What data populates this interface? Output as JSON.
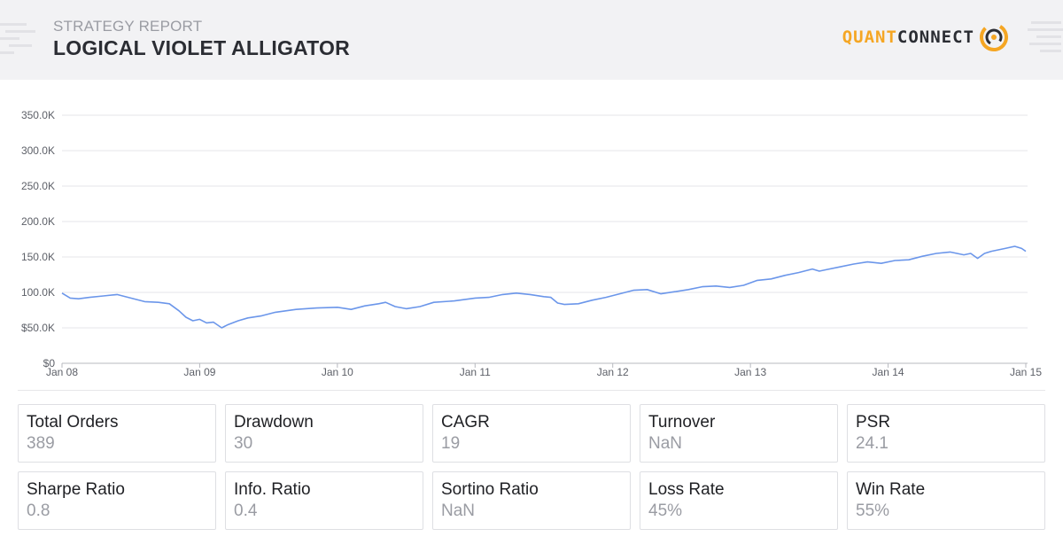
{
  "header": {
    "subtitle": "STRATEGY REPORT",
    "title": "LOGICAL VIOLET ALLIGATOR",
    "logo_part1": "QUANT",
    "logo_part2": "CONNECT"
  },
  "colors": {
    "accent": "#f5a623",
    "line": "#6b96ea",
    "grid": "#e6e6e9",
    "text": "#1f2024",
    "muted": "#9a9ca3"
  },
  "chart_data": {
    "type": "line",
    "title": "",
    "xlabel": "",
    "ylabel": "",
    "x_ticks": [
      "Jan 08",
      "Jan 09",
      "Jan 10",
      "Jan 11",
      "Jan 12",
      "Jan 13",
      "Jan 14",
      "Jan 15"
    ],
    "y_ticks": [
      "$0",
      "$50.0K",
      "100.0K",
      "150.0K",
      "200.0K",
      "250.0K",
      "300.0K",
      "350.0K"
    ],
    "ylim": [
      0,
      350000
    ],
    "xlim": [
      2008.0,
      2015.0
    ],
    "grid": true,
    "legend": "none",
    "series": [
      {
        "x": [
          2008.0,
          2008.06,
          2008.12,
          2008.2,
          2008.3,
          2008.4,
          2008.5,
          2008.6,
          2008.7,
          2008.78,
          2008.85,
          2008.9,
          2008.95,
          2009.0,
          2009.05,
          2009.1,
          2009.16,
          2009.2,
          2009.28,
          2009.35,
          2009.45,
          2009.55,
          2009.7,
          2009.85,
          2010.0,
          2010.1,
          2010.2,
          2010.3,
          2010.35,
          2010.42,
          2010.5,
          2010.6,
          2010.7,
          2010.85,
          2011.0,
          2011.1,
          2011.2,
          2011.3,
          2011.4,
          2011.5,
          2011.55,
          2011.6,
          2011.65,
          2011.75,
          2011.85,
          2011.95,
          2012.05,
          2012.15,
          2012.25,
          2012.35,
          2012.45,
          2012.55,
          2012.65,
          2012.75,
          2012.85,
          2012.95,
          2013.05,
          2013.15,
          2013.25,
          2013.35,
          2013.45,
          2013.5,
          2013.55,
          2013.65,
          2013.75,
          2013.85,
          2013.95,
          2014.05,
          2014.15,
          2014.25,
          2014.35,
          2014.45,
          2014.55,
          2014.6,
          2014.65,
          2014.7,
          2014.75,
          2014.85,
          2014.92,
          2014.97,
          2015.0
        ],
        "values": [
          99000,
          92000,
          91000,
          93000,
          95000,
          97000,
          92000,
          87000,
          86000,
          84000,
          74000,
          65000,
          60000,
          62000,
          57000,
          58000,
          50000,
          54000,
          60000,
          64000,
          67000,
          72000,
          76000,
          78000,
          79000,
          76000,
          81000,
          84000,
          86000,
          80000,
          77000,
          80000,
          86000,
          88000,
          92000,
          93000,
          97000,
          99000,
          97000,
          94000,
          93000,
          85000,
          83000,
          84000,
          89000,
          93000,
          98000,
          103000,
          104000,
          98000,
          101000,
          104000,
          108000,
          109000,
          107000,
          110000,
          117000,
          119000,
          124000,
          128000,
          133000,
          130000,
          132000,
          136000,
          140000,
          143000,
          141000,
          145000,
          146000,
          151000,
          155000,
          157000,
          153000,
          155000,
          148000,
          155000,
          158000,
          162000,
          165000,
          162000,
          158000
        ]
      }
    ]
  },
  "metrics": [
    {
      "label": "Total Orders",
      "value": "389"
    },
    {
      "label": "Drawdown",
      "value": "30"
    },
    {
      "label": "CAGR",
      "value": "19"
    },
    {
      "label": "Turnover",
      "value": "NaN"
    },
    {
      "label": "PSR",
      "value": "24.1"
    },
    {
      "label": "Sharpe Ratio",
      "value": "0.8"
    },
    {
      "label": "Info. Ratio",
      "value": "0.4"
    },
    {
      "label": "Sortino Ratio",
      "value": "NaN"
    },
    {
      "label": "Loss Rate",
      "value": "45%"
    },
    {
      "label": "Win Rate",
      "value": "55%"
    }
  ]
}
